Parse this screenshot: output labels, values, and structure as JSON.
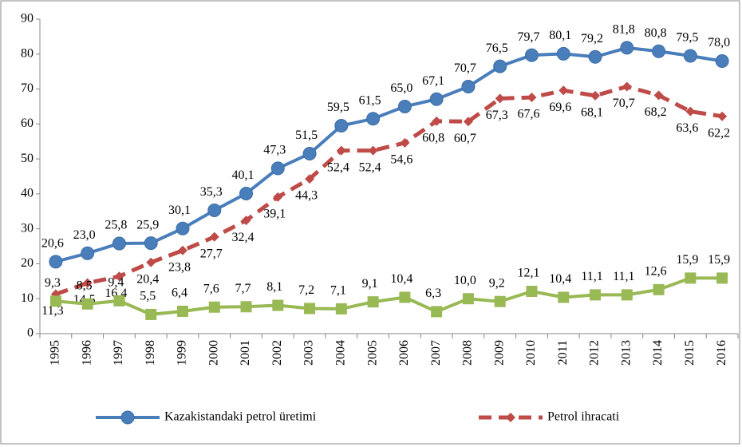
{
  "chart_data": {
    "type": "line",
    "categories": [
      "1995",
      "1996",
      "1997",
      "1998",
      "1999",
      "2000",
      "2001",
      "2002",
      "2003",
      "2004",
      "2005",
      "2006",
      "2007",
      "2008",
      "2009",
      "2010",
      "2011",
      "2012",
      "2013",
      "2014",
      "2015",
      "2016"
    ],
    "series": [
      {
        "name": "Kazakistandaki petrol üretimi",
        "color": "#4a7ebb",
        "marker": "circle",
        "dash": false,
        "values": [
          20.6,
          23.0,
          25.8,
          25.9,
          30.1,
          35.3,
          40.1,
          47.3,
          51.5,
          59.5,
          61.5,
          65.0,
          67.1,
          70.7,
          76.5,
          79.7,
          80.1,
          79.2,
          81.8,
          80.8,
          79.5,
          78.0
        ],
        "value_labels": [
          "20,6",
          "23,0",
          "25,8",
          "25,9",
          "30,1",
          "35,3",
          "40,1",
          "47,3",
          "51,5",
          "59,5",
          "61,5",
          "65,0",
          "67,1",
          "70,7",
          "76,5",
          "79,7",
          "80,1",
          "79,2",
          "81,8",
          "80,8",
          "79,5",
          "78,0"
        ]
      },
      {
        "name": "Petrol ihracati",
        "color": "#be4b48",
        "marker": "diamond",
        "dash": true,
        "values": [
          11.3,
          14.5,
          16.4,
          20.4,
          23.8,
          27.7,
          32.4,
          39.1,
          44.3,
          52.4,
          52.4,
          54.6,
          60.8,
          60.7,
          67.3,
          67.6,
          69.6,
          68.1,
          70.7,
          68.2,
          63.6,
          62.2
        ],
        "value_labels": [
          "11,3",
          "14,5",
          "16,4",
          "20,4",
          "23,8",
          "27,7",
          "32,4",
          "39,1",
          "44,3",
          "52,4",
          "52,4",
          "54,6",
          "60,8",
          "60,7",
          "67,3",
          "67,6",
          "69,6",
          "68,1",
          "70,7",
          "68,2",
          "63,6",
          "62,2"
        ]
      },
      {
        "color": "#98b954",
        "marker": "square",
        "dash": false,
        "values": [
          9.3,
          8.5,
          9.4,
          5.5,
          6.4,
          7.6,
          7.7,
          8.1,
          7.2,
          7.1,
          9.1,
          10.4,
          6.3,
          10.0,
          9.2,
          12.1,
          10.4,
          11.1,
          11.1,
          12.6,
          15.9,
          15.9
        ],
        "value_labels": [
          "9,3",
          "8,5",
          "9,4",
          "5,5",
          "6,4",
          "7,6",
          "7,7",
          "8,1",
          "7,2",
          "7,1",
          "9,1",
          "10,4",
          "6,3",
          "10,0",
          "9,2",
          "12,1",
          "10,4",
          "11,1",
          "11,1",
          "12,6",
          "15,9",
          "15,9"
        ]
      }
    ],
    "ylim": [
      0,
      90
    ],
    "yticks": [
      0,
      10,
      20,
      30,
      40,
      50,
      60,
      70,
      80,
      90
    ],
    "grid": false
  }
}
